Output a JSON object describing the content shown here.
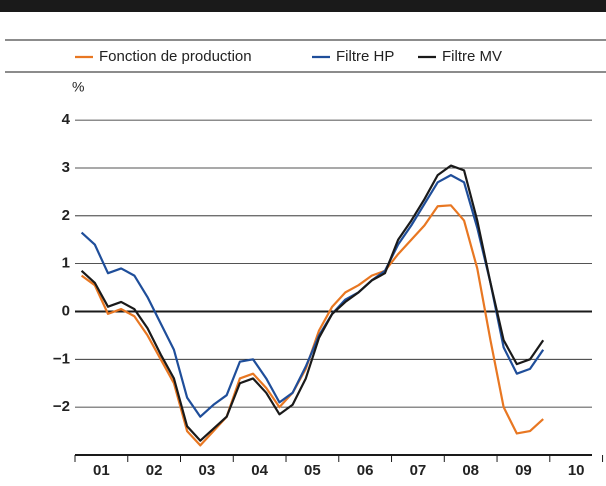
{
  "chart_data": {
    "type": "line",
    "y_label": "%",
    "x": [
      2001.125,
      2001.375,
      2001.625,
      2001.875,
      2002.125,
      2002.375,
      2002.625,
      2002.875,
      2003.125,
      2003.375,
      2003.625,
      2003.875,
      2004.125,
      2004.375,
      2004.625,
      2004.875,
      2005.125,
      2005.375,
      2005.625,
      2005.875,
      2006.125,
      2006.375,
      2006.625,
      2006.875,
      2007.125,
      2007.375,
      2007.625,
      2007.875,
      2008.125,
      2008.375,
      2008.625,
      2008.875,
      2009.125,
      2009.375,
      2009.625,
      2009.875
    ],
    "series": [
      {
        "name": "Fonction de production",
        "color": "#e87722",
        "values": [
          0.75,
          0.55,
          -0.05,
          0.05,
          -0.1,
          -0.5,
          -1.0,
          -1.5,
          -2.5,
          -2.8,
          -2.5,
          -2.2,
          -1.4,
          -1.3,
          -1.6,
          -2.0,
          -1.7,
          -1.2,
          -0.4,
          0.1,
          0.4,
          0.55,
          0.75,
          0.85,
          1.2,
          1.5,
          1.8,
          2.2,
          2.22,
          1.9,
          0.9,
          -0.6,
          -2.0,
          -2.55,
          -2.5,
          -2.25
        ]
      },
      {
        "name": "Filtre HP",
        "color": "#1f4e9a",
        "values": [
          1.65,
          1.4,
          0.8,
          0.9,
          0.75,
          0.3,
          -0.25,
          -0.8,
          -1.8,
          -2.2,
          -1.95,
          -1.75,
          -1.05,
          -1.0,
          -1.4,
          -1.9,
          -1.7,
          -1.15,
          -0.5,
          -0.05,
          0.25,
          0.4,
          0.65,
          0.85,
          1.4,
          1.8,
          2.25,
          2.7,
          2.85,
          2.7,
          1.75,
          0.6,
          -0.75,
          -1.3,
          -1.2,
          -0.8
        ]
      },
      {
        "name": "Filtre MV",
        "color": "#1a1a1a",
        "values": [
          0.85,
          0.6,
          0.1,
          0.2,
          0.05,
          -0.35,
          -0.9,
          -1.4,
          -2.4,
          -2.7,
          -2.45,
          -2.2,
          -1.5,
          -1.4,
          -1.7,
          -2.15,
          -1.95,
          -1.4,
          -0.55,
          -0.05,
          0.2,
          0.4,
          0.65,
          0.8,
          1.5,
          1.9,
          2.35,
          2.85,
          3.05,
          2.95,
          1.9,
          0.6,
          -0.6,
          -1.1,
          -1.0,
          -0.6
        ]
      }
    ],
    "xlim": [
      2001,
      2010.8
    ],
    "xticks": [
      {
        "value": 2001.5,
        "label": "01"
      },
      {
        "value": 2002.5,
        "label": "02"
      },
      {
        "value": 2003.5,
        "label": "03"
      },
      {
        "value": 2004.5,
        "label": "04"
      },
      {
        "value": 2005.5,
        "label": "05"
      },
      {
        "value": 2006.5,
        "label": "06"
      },
      {
        "value": 2007.5,
        "label": "07"
      },
      {
        "value": 2008.5,
        "label": "08"
      },
      {
        "value": 2009.5,
        "label": "09"
      },
      {
        "value": 2010.5,
        "label": "10"
      }
    ],
    "ylim": [
      -3,
      4.4
    ],
    "yticks": [
      {
        "value": -2,
        "label": "−2"
      },
      {
        "value": -1,
        "label": "−1"
      },
      0,
      1,
      2,
      3,
      4
    ],
    "grid": true
  }
}
